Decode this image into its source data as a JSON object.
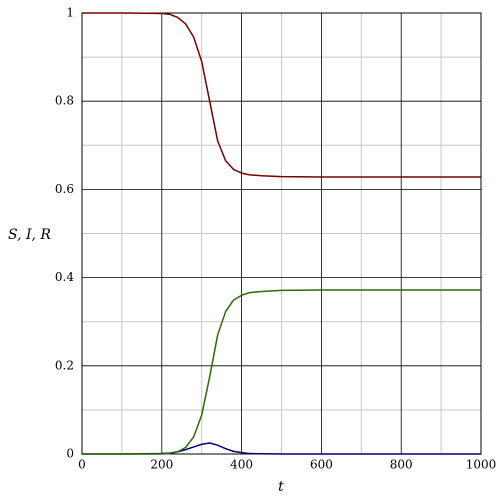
{
  "chart_data": {
    "type": "line",
    "x_label": "t",
    "y_label": "S, I, R",
    "x": [
      0,
      100,
      200,
      220,
      240,
      260,
      280,
      300,
      320,
      340,
      360,
      380,
      400,
      420,
      450,
      500,
      600,
      800,
      1000
    ],
    "series": [
      {
        "name": "S",
        "color": "#7a0000",
        "values": [
          1,
          1,
          0.999,
          0.997,
          0.99,
          0.975,
          0.945,
          0.89,
          0.8,
          0.71,
          0.665,
          0.645,
          0.637,
          0.633,
          0.631,
          0.629,
          0.628,
          0.628,
          0.628
        ]
      },
      {
        "name": "I",
        "color": "#00007a",
        "values": [
          0,
          0,
          0.001,
          0.002,
          0.005,
          0.01,
          0.016,
          0.022,
          0.025,
          0.02,
          0.012,
          0.006,
          0.003,
          0.001,
          0.0005,
          0,
          0,
          0,
          0
        ]
      },
      {
        "name": "R",
        "color": "#2e6b00",
        "values": [
          0,
          0,
          0,
          0.001,
          0.005,
          0.015,
          0.039,
          0.088,
          0.175,
          0.27,
          0.323,
          0.349,
          0.36,
          0.366,
          0.3685,
          0.371,
          0.372,
          0.372,
          0.372
        ]
      }
    ],
    "xlim": [
      0,
      1000
    ],
    "ylim": [
      0,
      1
    ],
    "xticks": [
      0,
      200,
      400,
      600,
      800,
      1000
    ],
    "yticks": [
      0,
      0.2,
      0.4,
      0.6,
      0.8,
      1
    ],
    "xminorticks": [
      100,
      300,
      500,
      700,
      900
    ],
    "yminorticks": [
      0.1,
      0.3,
      0.5,
      0.7,
      0.9
    ],
    "grid": true
  }
}
